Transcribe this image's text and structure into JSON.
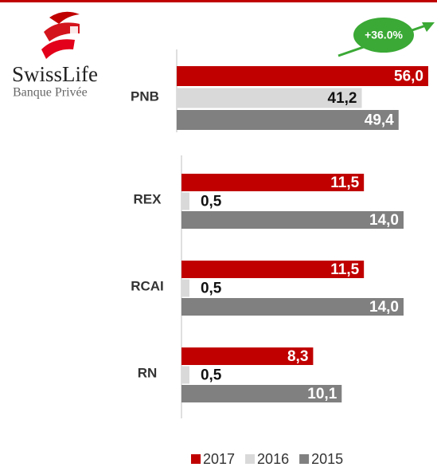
{
  "logo": {
    "name": "SwissLife",
    "subtitle": "Banque Privée"
  },
  "chart_data": [
    {
      "type": "bar",
      "orientation": "horizontal",
      "annotation": "+36.0%",
      "categories": [
        "PNB"
      ],
      "series": [
        {
          "name": "2017",
          "color": "#c00000",
          "values": [
            56.0
          ],
          "value_labels": [
            "56,0"
          ]
        },
        {
          "name": "2016",
          "color": "#d9d9d9",
          "values": [
            41.2
          ],
          "value_labels": [
            "41,2"
          ]
        },
        {
          "name": "2015",
          "color": "#808080",
          "values": [
            49.4
          ],
          "value_labels": [
            "49,4"
          ]
        }
      ],
      "xlim": [
        0,
        56
      ]
    },
    {
      "type": "bar",
      "orientation": "horizontal",
      "categories": [
        "REX",
        "RCAI",
        "RN"
      ],
      "series": [
        {
          "name": "2017",
          "color": "#c00000",
          "values": [
            11.5,
            11.5,
            8.3
          ],
          "value_labels": [
            "11,5",
            "11,5",
            "8,3"
          ]
        },
        {
          "name": "2016",
          "color": "#d9d9d9",
          "values": [
            0.5,
            0.5,
            0.5
          ],
          "value_labels": [
            "0,5",
            "0,5",
            "0,5"
          ]
        },
        {
          "name": "2015",
          "color": "#808080",
          "values": [
            14.0,
            14.0,
            10.1
          ],
          "value_labels": [
            "14,0",
            "14,0",
            "10,1"
          ]
        }
      ],
      "xlim": [
        0,
        14
      ]
    }
  ]
}
